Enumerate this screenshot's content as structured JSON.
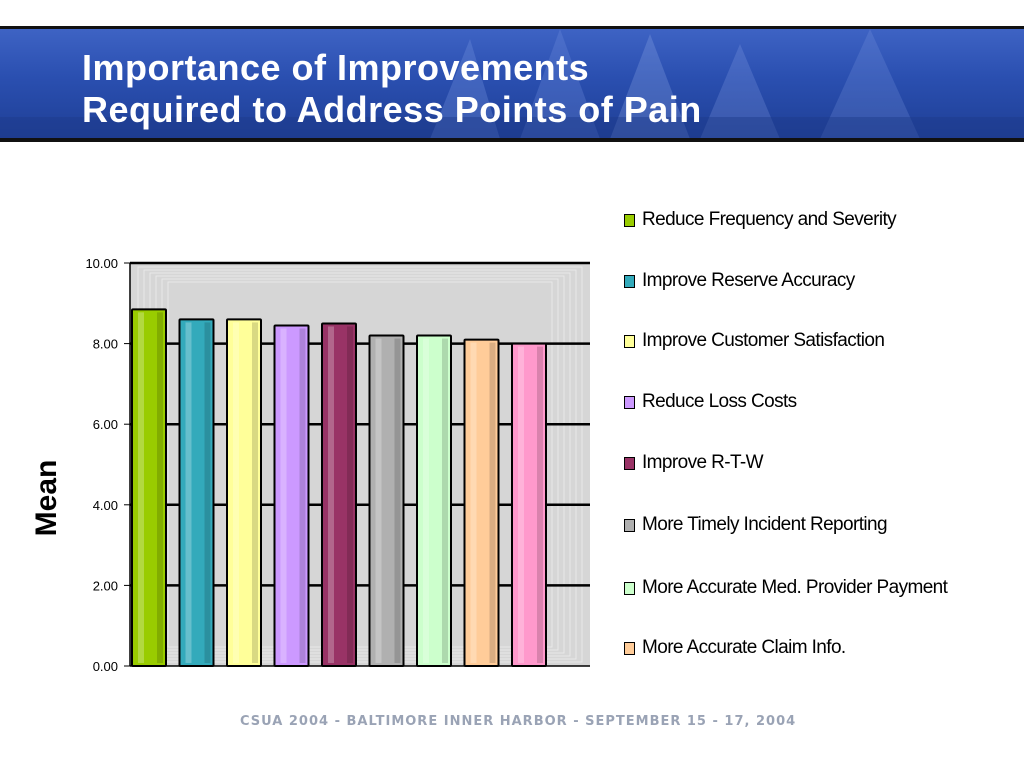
{
  "header": {
    "title_line1": "Importance of Improvements",
    "title_line2": "Required to Address Points of Pain",
    "background_color": "#2a4fb0"
  },
  "chart_data": {
    "type": "bar",
    "title": "",
    "xlabel": "",
    "ylabel": "Mean",
    "ylim": [
      0,
      10
    ],
    "y_ticks": [
      "0.00",
      "2.00",
      "4.00",
      "6.00",
      "8.00",
      "10.00"
    ],
    "grid": true,
    "legend_position": "right",
    "categories": [
      "Reduce Frequency and Severity",
      "Improve Reserve Accuracy",
      "Improve Customer Satisfaction",
      "Reduce Loss Costs",
      "Improve R-T-W",
      "More Timely Incident Reporting",
      "More Accurate Med. Provider Payment",
      "More Accurate Claim Info.",
      ""
    ],
    "values": [
      8.85,
      8.6,
      8.6,
      8.45,
      8.5,
      8.2,
      8.2,
      8.1,
      8.0
    ],
    "colors": [
      "#99cc00",
      "#33aabb",
      "#ffff99",
      "#cc99ff",
      "#993366",
      "#b0b0b0",
      "#ccffcc",
      "#ffcc99",
      "#ff99cc"
    ]
  },
  "legend": [
    {
      "label": "Reduce Frequency and Severity",
      "color": "#99cc00"
    },
    {
      "label": "Improve Reserve Accuracy",
      "color": "#33aabb"
    },
    {
      "label": "Improve Customer Satisfaction",
      "color": "#ffff99"
    },
    {
      "label": "Reduce Loss Costs",
      "color": "#cc99ff"
    },
    {
      "label": "Improve R-T-W",
      "color": "#993366"
    },
    {
      "label": "More Timely Incident Reporting",
      "color": "#b0b0b0"
    },
    {
      "label": "More Accurate Med. Provider Payment",
      "color": "#ccffcc"
    },
    {
      "label": "More Accurate Claim Info.",
      "color": "#ffcc99"
    }
  ],
  "footer": {
    "text": "CSUA 2004 - BALTIMORE INNER HARBOR - SEPTEMBER 15 - 17, 2004"
  }
}
